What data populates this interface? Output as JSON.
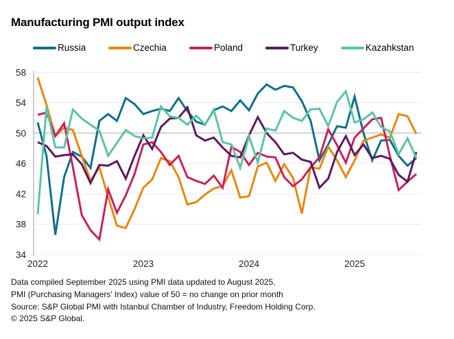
{
  "chart_data": {
    "type": "line",
    "title": "Manufacturing PMI output index",
    "xlabel": "",
    "ylabel": "",
    "ylim": [
      34,
      58
    ],
    "yticks": [
      34,
      38,
      42,
      46,
      50,
      54,
      58
    ],
    "xtick_labels": [
      "2022",
      "2023",
      "2024",
      "2025"
    ],
    "grid": true,
    "reference_line": 50,
    "legend_position": "top",
    "x": [
      "2022-01",
      "2022-02",
      "2022-03",
      "2022-04",
      "2022-05",
      "2022-06",
      "2022-07",
      "2022-08",
      "2022-09",
      "2022-10",
      "2022-11",
      "2022-12",
      "2023-01",
      "2023-02",
      "2023-03",
      "2023-04",
      "2023-05",
      "2023-06",
      "2023-07",
      "2023-08",
      "2023-09",
      "2023-10",
      "2023-11",
      "2023-12",
      "2024-01",
      "2024-02",
      "2024-03",
      "2024-04",
      "2024-05",
      "2024-06",
      "2024-07",
      "2024-08",
      "2024-09",
      "2024-10",
      "2024-11",
      "2024-12",
      "2025-01",
      "2025-02",
      "2025-03",
      "2025-04",
      "2025-05",
      "2025-06",
      "2025-07",
      "2025-08"
    ],
    "series": [
      {
        "name": "Russia",
        "color": "#0f6f8c",
        "values": [
          51.4,
          47.0,
          36.6,
          44.2,
          47.5,
          46.9,
          45.4,
          51.6,
          52.5,
          51.6,
          54.6,
          53.8,
          52.5,
          52.9,
          53.2,
          52.9,
          54.6,
          52.9,
          51.5,
          51.1,
          53.0,
          53.5,
          52.9,
          54.3,
          53.0,
          55.2,
          56.4,
          55.7,
          56.2,
          56.0,
          54.2,
          51.6,
          46.4,
          48.5,
          50.9,
          50.7,
          54.8,
          50.0,
          46.4,
          49.0,
          49.1,
          47.0,
          45.7,
          46.7
        ]
      },
      {
        "name": "Czechia",
        "color": "#e8870e",
        "values": [
          57.3,
          53.7,
          49.6,
          50.7,
          50.4,
          47.0,
          43.7,
          45.5,
          41.6,
          37.8,
          37.5,
          40.0,
          42.8,
          43.9,
          46.7,
          46.3,
          44.2,
          40.6,
          40.9,
          41.9,
          42.7,
          43.0,
          45.1,
          41.5,
          41.7,
          45.6,
          46.1,
          43.7,
          45.9,
          44.1,
          39.4,
          45.5,
          45.3,
          48.2,
          46.4,
          44.2,
          46.4,
          49.0,
          49.4,
          49.8,
          49.4,
          52.5,
          52.2,
          49.9
        ]
      },
      {
        "name": "Poland",
        "color": "#c8215c",
        "values": [
          52.4,
          52.7,
          49.6,
          51.3,
          45.5,
          39.2,
          37.2,
          36.0,
          42.6,
          39.5,
          41.8,
          44.6,
          48.5,
          48.8,
          47.5,
          45.8,
          47.0,
          44.2,
          43.7,
          43.3,
          44.4,
          42.8,
          48.2,
          47.5,
          45.8,
          47.4,
          46.9,
          46.8,
          44.2,
          43.0,
          43.9,
          45.5,
          46.8,
          50.5,
          48.4,
          46.1,
          49.4,
          50.6,
          51.8,
          52.0,
          47.0,
          42.5,
          43.6,
          44.6
        ]
      },
      {
        "name": "Turkey",
        "color": "#5b1a5f",
        "values": [
          48.8,
          48.3,
          46.9,
          47.1,
          47.2,
          45.9,
          43.4,
          45.8,
          45.7,
          46.3,
          44.0,
          47.0,
          49.7,
          47.9,
          50.8,
          51.9,
          52.0,
          53.4,
          49.7,
          49.0,
          49.4,
          48.1,
          47.0,
          46.8,
          49.7,
          52.1,
          50.0,
          48.8,
          47.2,
          47.4,
          46.5,
          46.2,
          42.8,
          44.0,
          47.5,
          49.6,
          47.1,
          48.5,
          46.7,
          47.0,
          46.6,
          44.5,
          43.6,
          47.5
        ]
      },
      {
        "name": "Kazahkstan",
        "color": "#5cc4a2",
        "values": [
          39.3,
          53.4,
          48.1,
          48.1,
          53.1,
          51.9,
          51.1,
          50.3,
          47.0,
          48.7,
          50.4,
          49.6,
          49.3,
          49.4,
          53.5,
          52.2,
          52.0,
          51.1,
          52.3,
          51.1,
          53.1,
          48.8,
          48.5,
          45.4,
          49.6,
          46.1,
          50.6,
          50.3,
          52.9,
          52.0,
          51.6,
          53.1,
          53.2,
          50.9,
          54.1,
          55.5,
          51.4,
          51.8,
          52.7,
          50.8,
          50.2,
          47.2,
          49.3,
          46.7
        ]
      }
    ]
  },
  "footer": {
    "line1": "Data compiled September 2025 using PMI data updated to August 2025.",
    "line2": "PMI (Purchasing Managers' Index) value of 50 = no change on prior month",
    "line3": "Source: S&P Global PMI with Istanbul Chamber of Industry, Freedom Holding Corp.",
    "line4": "© 2025 S&P Global."
  }
}
